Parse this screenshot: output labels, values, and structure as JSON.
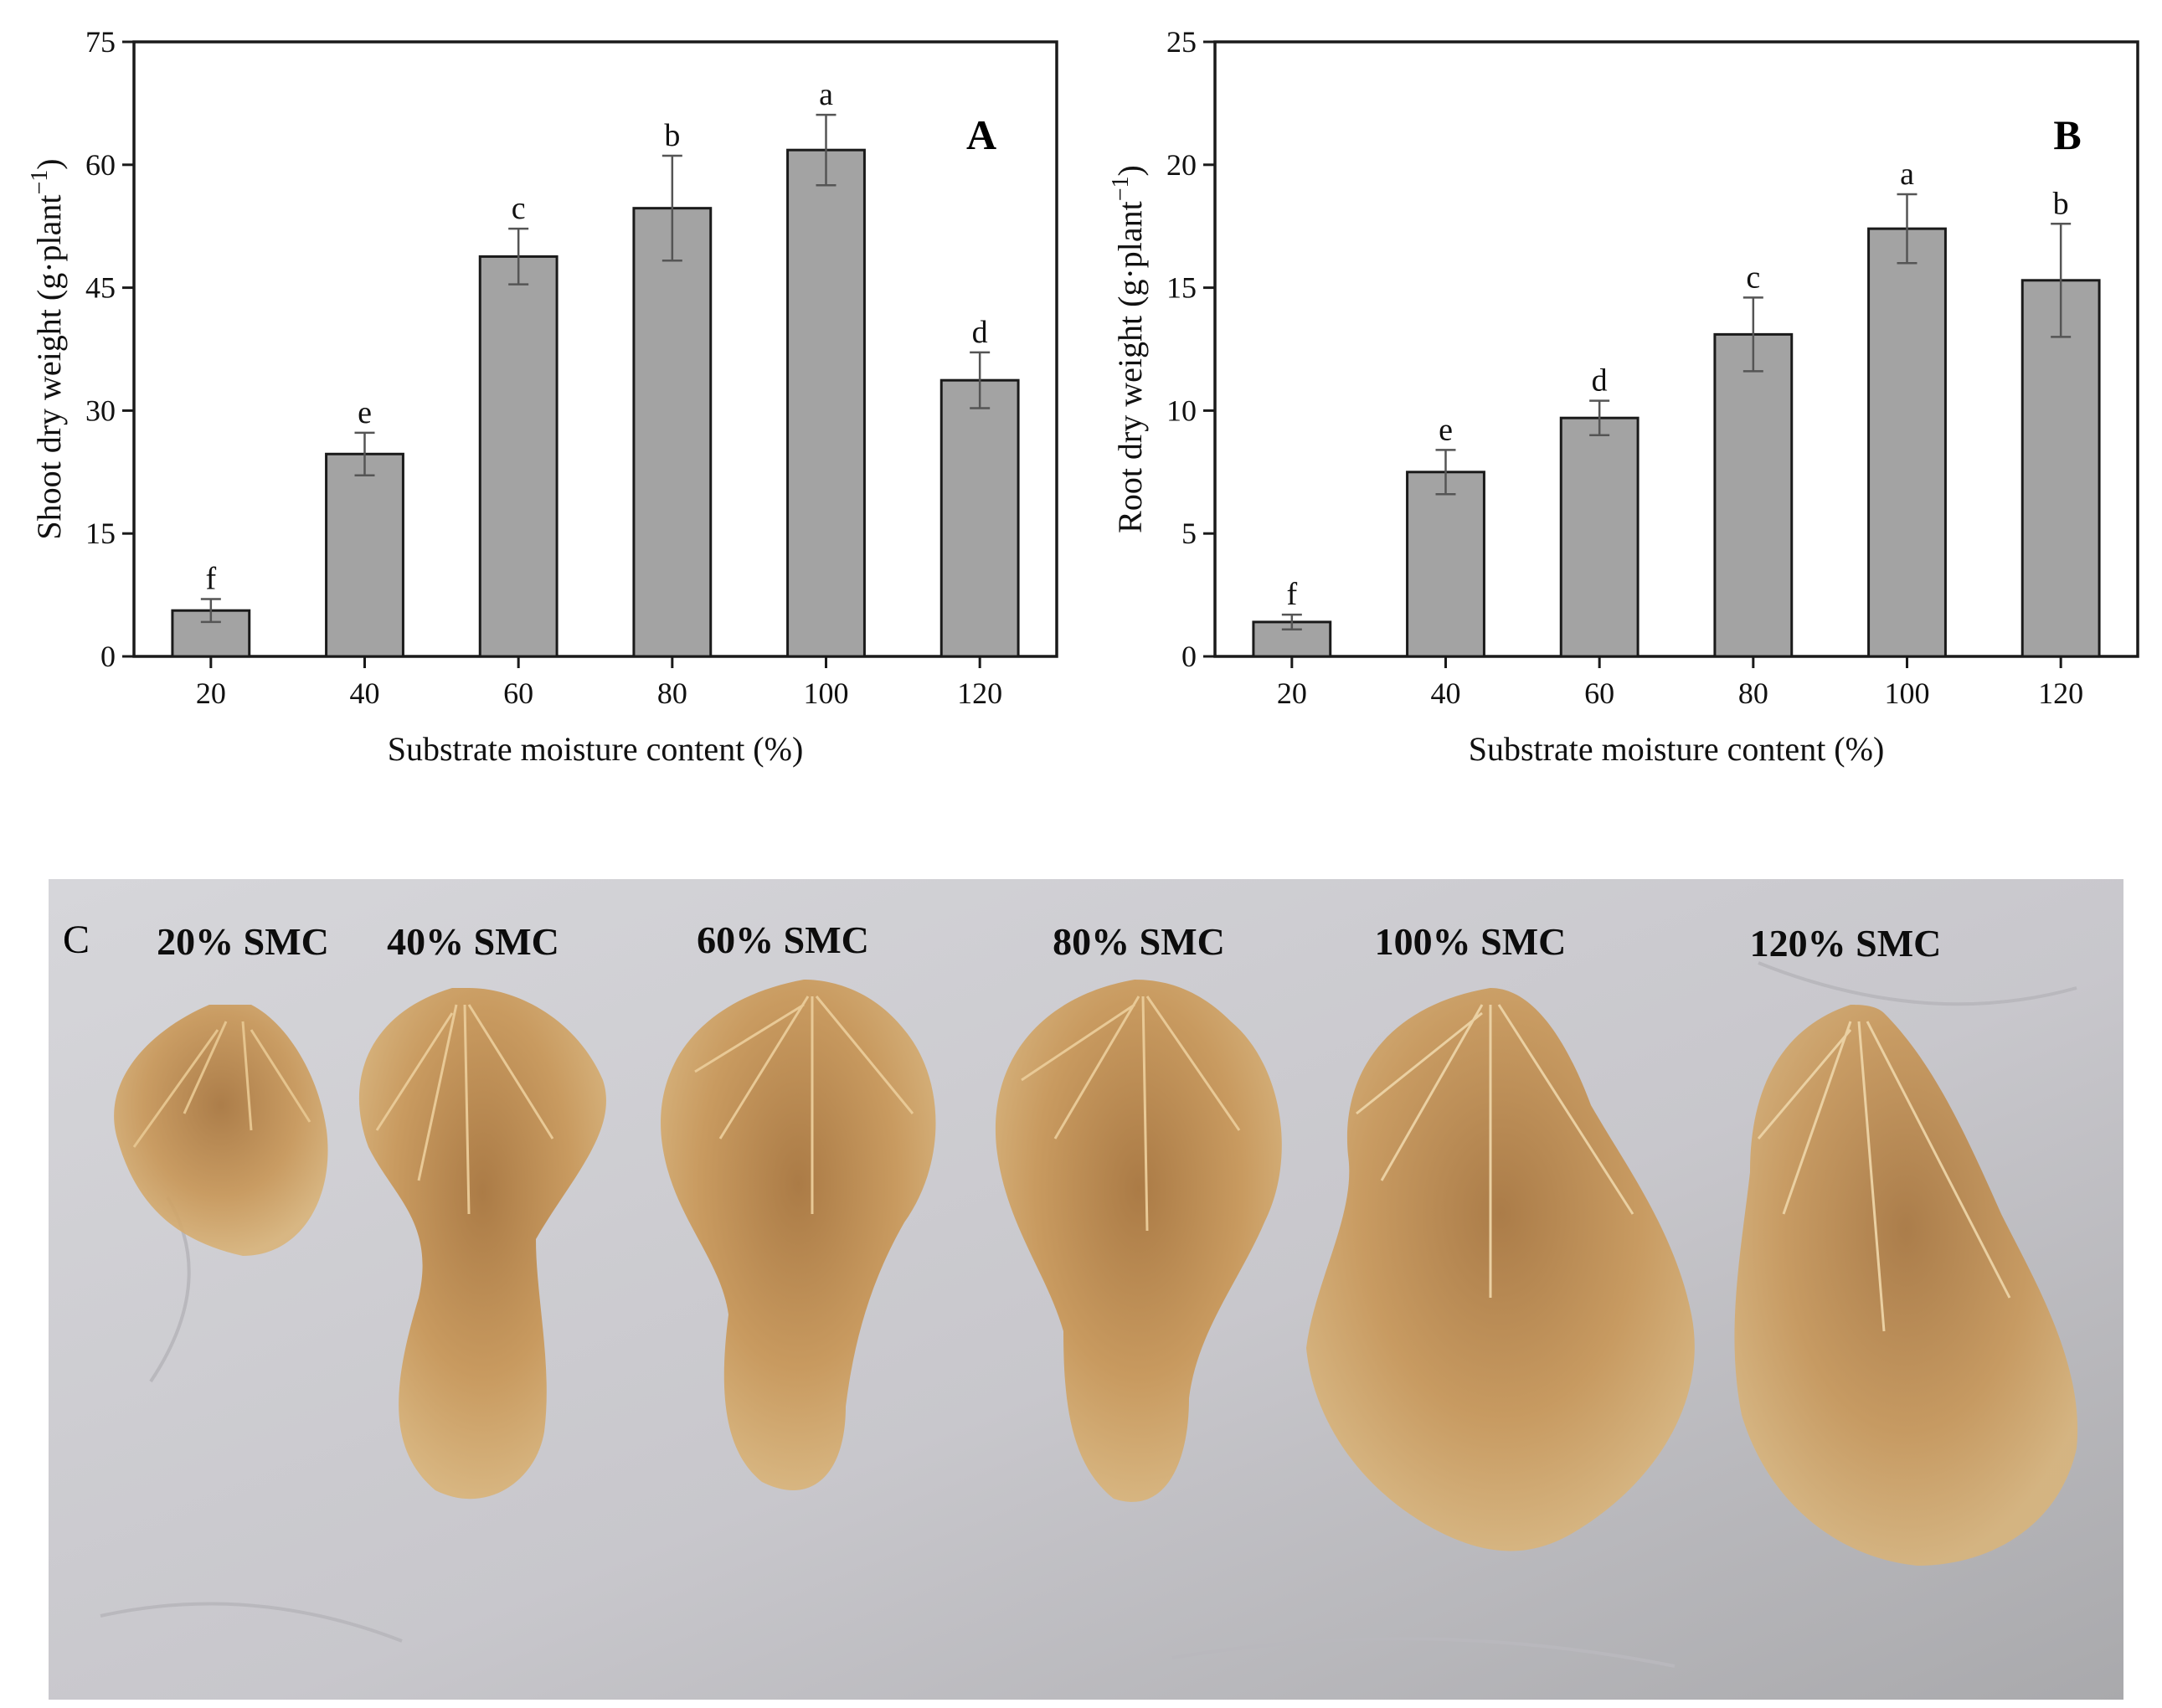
{
  "chart_data": [
    {
      "panel": "A",
      "type": "bar",
      "categories": [
        "20",
        "40",
        "60",
        "80",
        "100",
        "120"
      ],
      "values": [
        5.6,
        24.7,
        48.8,
        54.7,
        61.8,
        33.7
      ],
      "errors": [
        1.4,
        2.6,
        3.4,
        6.4,
        4.3,
        3.4
      ],
      "letters": [
        "f",
        "e",
        "c",
        "b",
        "a",
        "d"
      ],
      "xlabel": "Substrate moisture content (%)",
      "ylabel": "Shoot dry weight (g·plant",
      "ylabel_sup": "−1",
      "ylabel_close": ")",
      "ylim": [
        0,
        75
      ],
      "yticks": [
        0,
        15,
        30,
        45,
        60,
        75
      ]
    },
    {
      "panel": "B",
      "type": "bar",
      "categories": [
        "20",
        "40",
        "60",
        "80",
        "100",
        "120"
      ],
      "values": [
        1.4,
        7.5,
        9.7,
        13.1,
        17.4,
        15.3
      ],
      "errors": [
        0.3,
        0.9,
        0.7,
        1.5,
        1.4,
        2.3
      ],
      "letters": [
        "f",
        "e",
        "d",
        "c",
        "a",
        "b"
      ],
      "xlabel": "Substrate moisture content (%)",
      "ylabel": "Root dry weight (g·plant",
      "ylabel_sup": "−1",
      "ylabel_close": ")",
      "ylim": [
        0,
        25
      ],
      "yticks": [
        0,
        5,
        10,
        15,
        20,
        25
      ]
    }
  ],
  "photo": {
    "panel": "C",
    "labels": [
      "20% SMC",
      "40% SMC",
      "60% SMC",
      "80% SMC",
      "100% SMC",
      "120% SMC"
    ]
  },
  "colors": {
    "bar_fill": "#a3a3a3",
    "photo_background": "#c9c8cc",
    "root_color": "#c59552"
  }
}
